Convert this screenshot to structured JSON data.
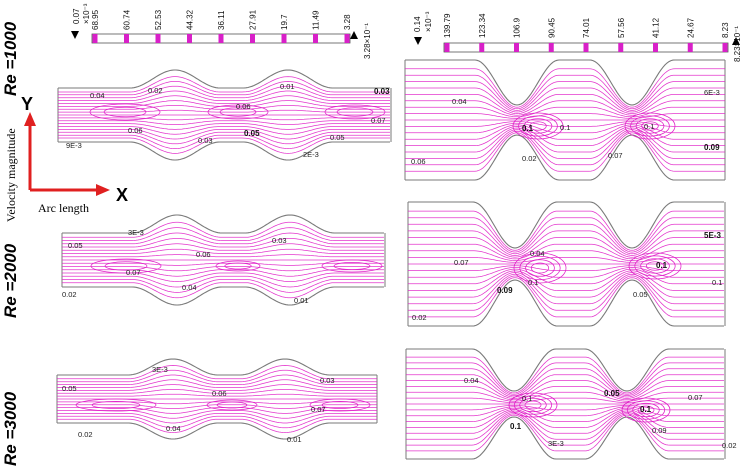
{
  "colorbars": [
    {
      "side": "left",
      "max_label": "0.07",
      "exp_label": "×10⁻³",
      "ticks": [
        "68.95",
        "60.74",
        "52.53",
        "44.32",
        "36.11",
        "27.91",
        "19.7",
        "11.49",
        "3.28"
      ],
      "min_label": "3.28×10⁻¹"
    },
    {
      "side": "right",
      "max_label": "0.14",
      "exp_label": "×10⁻³",
      "ticks": [
        "139.79",
        "123.34",
        "106.9",
        "90.45",
        "74.01",
        "57.56",
        "41.12",
        "24.67",
        "8.23"
      ],
      "min_label": "8.23×10⁻¹"
    }
  ],
  "row_labels": [
    "Re =1000",
    "Re =2000",
    "Re =3000"
  ],
  "axes": {
    "y_letter": "Y",
    "y_text": "Velocity magnitude",
    "x_letter": "X",
    "x_text": "Arc length"
  },
  "panels": [
    {
      "id": "l1",
      "labels": [
        "0.02",
        "0.01",
        "0.03",
        "0.04",
        "0.06",
        "0.07",
        "0.06",
        "0.05",
        "0.03",
        "0.05",
        "9E-3",
        "2E-3"
      ]
    },
    {
      "id": "r1",
      "labels": [
        "0.04",
        "6E-3",
        "0.1",
        "0.1",
        "0.1",
        "0.06",
        "0.02",
        "0.07",
        "0.09"
      ]
    },
    {
      "id": "l2",
      "labels": [
        "3E-3",
        "0.05",
        "0.03",
        "0.06",
        "0.07",
        "0.04",
        "0.01",
        "0.02"
      ]
    },
    {
      "id": "r2",
      "labels": [
        "0.04",
        "5E-3",
        "0.07",
        "0.1",
        "0.1",
        "0.09",
        "0.1",
        "0.05",
        "0.02"
      ]
    },
    {
      "id": "l3",
      "labels": [
        "3E-3",
        "0.05",
        "0.03",
        "0.06",
        "0.07",
        "0.04",
        "0.02",
        "0.01"
      ]
    },
    {
      "id": "r3",
      "labels": [
        "0.04",
        "0.05",
        "0.1",
        "0.1",
        "0.07",
        "0.1",
        "0.09",
        "3E-3",
        "0.02"
      ]
    }
  ],
  "colors": {
    "stream": "#e020c8",
    "wall": "#7a7a7a",
    "arrow": "#e02020",
    "bar": "#d820c8"
  }
}
